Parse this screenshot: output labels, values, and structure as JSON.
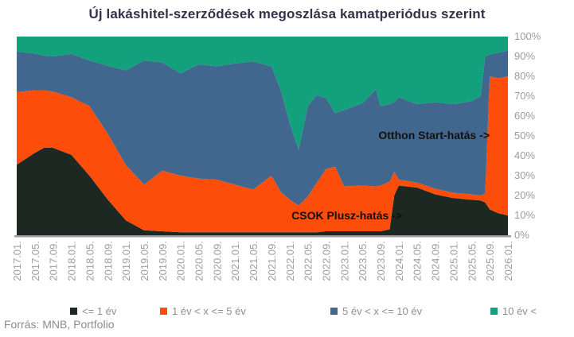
{
  "title": "Új lakáshitel-szerződések megoszlása kamatperiódus szerint",
  "source": "Forrás: MNB, Portfolio",
  "annotations": [
    {
      "id": "otthon-start",
      "text": "Otthon Start-hatás ->"
    },
    {
      "id": "csok-plusz",
      "text": "CSOK Plusz-hatás ->"
    }
  ],
  "chart_data": {
    "type": "area",
    "stacking": "percent",
    "title": "Új lakáshitel-szerződések megoszlása kamatperiódus szerint",
    "grid": false,
    "legend_position": "bottom",
    "x": [
      "2017.01",
      "2017.05",
      "2017.07",
      "2017.09",
      "2018.01",
      "2018.05",
      "2018.09",
      "2019.01",
      "2019.05",
      "2019.09",
      "2020.01",
      "2020.05",
      "2020.09",
      "2021.01",
      "2021.05",
      "2021.09",
      "2021.11",
      "2022.01",
      "2022.03",
      "2022.05",
      "2022.07",
      "2022.09",
      "2022.11",
      "2023.01",
      "2023.05",
      "2023.08",
      "2023.09",
      "2023.11",
      "2023.12",
      "2024.01",
      "2024.05",
      "2024.09",
      "2025.01",
      "2025.05",
      "2025.07",
      "2025.08",
      "2025.09",
      "2025.11",
      "2026.01"
    ],
    "series": [
      {
        "name": "<= 1 év",
        "color": "#1e2822",
        "values": [
          35.5,
          41.5,
          44,
          44,
          40.5,
          30,
          18,
          7.5,
          2.5,
          2,
          1.5,
          1.5,
          1.5,
          1.5,
          1.5,
          1.5,
          1.5,
          1.5,
          1.5,
          1.5,
          1.5,
          2,
          2,
          2,
          2,
          2,
          2,
          3,
          20,
          25,
          24,
          20.6,
          18.7,
          17.9,
          17.5,
          16.5,
          13,
          11,
          10
        ]
      },
      {
        "name": "1 év < x <= 5 év",
        "color": "#fc4e0a",
        "values": [
          36.5,
          31.5,
          29,
          28.3,
          29,
          35,
          33.2,
          27.8,
          23,
          30.5,
          28.5,
          27,
          26.5,
          24,
          21.5,
          28.5,
          20.5,
          16.5,
          13.5,
          18,
          25,
          31.3,
          32.5,
          22.6,
          23,
          22.6,
          23,
          24,
          12,
          3,
          2.5,
          2.8,
          2.7,
          2.7,
          2.5,
          4.5,
          67,
          68,
          70
        ]
      },
      {
        "name": "5 év < x <= 10 év",
        "color": "#41678f",
        "values": [
          20.5,
          18.5,
          17.5,
          17.7,
          21.8,
          23,
          34.1,
          47.7,
          62.5,
          54.5,
          51.5,
          57.5,
          57,
          61,
          64.5,
          55,
          51.5,
          38.5,
          28,
          45.5,
          44,
          35.7,
          27,
          38.4,
          41.5,
          48.9,
          40,
          39,
          35,
          41.5,
          39.5,
          43.6,
          44.6,
          46.9,
          50,
          69,
          11,
          13,
          13
        ]
      },
      {
        "name": "10 év <",
        "color": "#12a17c",
        "values": [
          7.5,
          8.5,
          9.5,
          10,
          8.7,
          12,
          14.7,
          17,
          12,
          13,
          18.5,
          14,
          15,
          13.5,
          12.5,
          15,
          26.5,
          43.5,
          57,
          35,
          29.5,
          31,
          38.5,
          37,
          33.5,
          26.5,
          35,
          34,
          33,
          30.5,
          34,
          33,
          34,
          32.5,
          30,
          10,
          9,
          8,
          7
        ]
      }
    ],
    "x_axis": {
      "tick_labels": [
        "2017.01.",
        "2017.05.",
        "2017.09.",
        "2018.01.",
        "2018.05.",
        "2018.09.",
        "2019.01.",
        "2019.05.",
        "2019.09.",
        "2020.01.",
        "2020.05.",
        "2020.09.",
        "2021.01.",
        "2021.05.",
        "2021.09.",
        "2022.01.",
        "2022.05.",
        "2022.09.",
        "2023.01.",
        "2023.05.",
        "2023.09.",
        "2024.01.",
        "2024.05.",
        "2024.09.",
        "2025.01.",
        "2025.05.",
        "2025.09.",
        "2026.01."
      ]
    },
    "y_axis": {
      "position": "right",
      "min": 0,
      "max": 100,
      "tick_labels": [
        "100%",
        "90%",
        "80%",
        "70%",
        "60%",
        "50%",
        "40%",
        "30%",
        "20%",
        "10%",
        "0%"
      ]
    },
    "axis_line_color": "#9e9e9e",
    "tick_label_color": "#9e9e9e"
  }
}
